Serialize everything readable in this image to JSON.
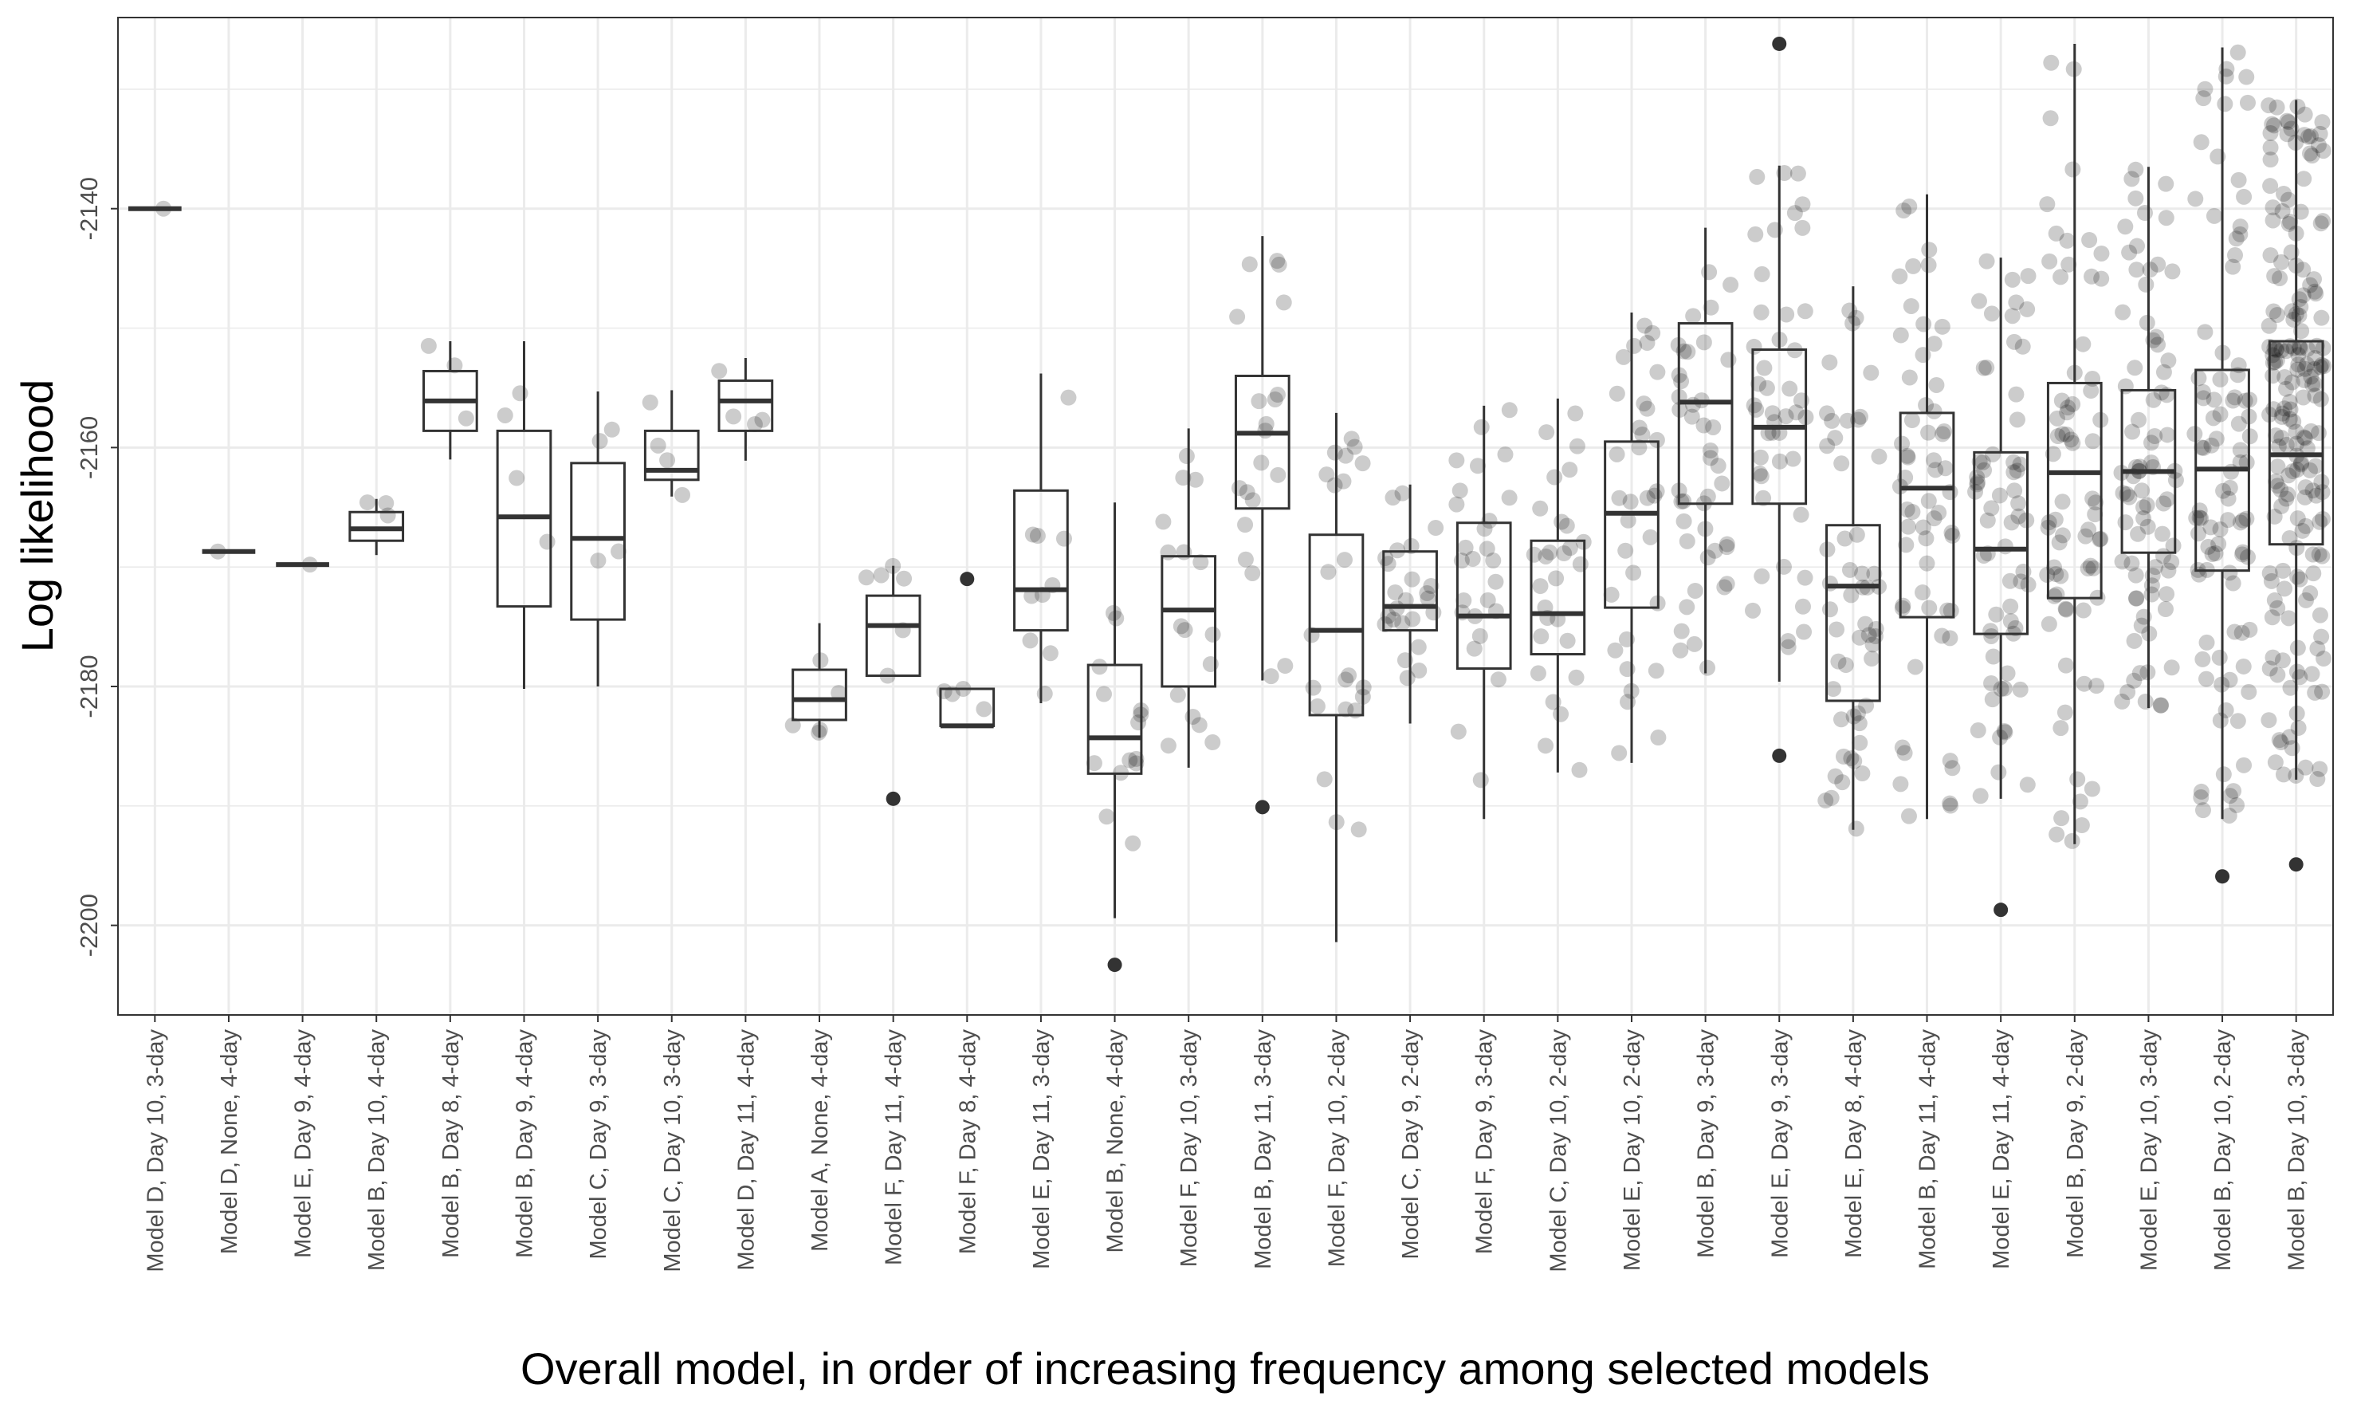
{
  "chart_data": {
    "type": "box",
    "title": "",
    "xlabel": "Overall model, in order of increasing frequency among selected models",
    "ylabel": "Log likelihood",
    "ylim": [
      -2207.5,
      -2124
    ],
    "yticks": [
      -2140,
      -2160,
      -2180,
      -2200
    ],
    "grid": true,
    "point_color": "#000000",
    "point_alpha": 0.2,
    "box_color": "#333333",
    "categories": [
      "Model D, Day 10, 3-day",
      "Model D, None, 4-day",
      "Model E, Day 9, 4-day",
      "Model B, Day 10, 4-day",
      "Model B, Day 8, 4-day",
      "Model B, Day 9, 4-day",
      "Model C, Day 9, 3-day",
      "Model C, Day 10, 3-day",
      "Model D, Day 11, 4-day",
      "Model A, None, 4-day",
      "Model F, Day 11, 4-day",
      "Model F, Day 8, 4-day",
      "Model E, Day 11, 3-day",
      "Model B, None, 4-day",
      "Model F, Day 10, 3-day",
      "Model B, Day 11, 3-day",
      "Model F, Day 10, 2-day",
      "Model C, Day 9, 2-day",
      "Model F, Day 9, 3-day",
      "Model C, Day 10, 2-day",
      "Model E, Day 10, 2-day",
      "Model B, Day 9, 3-day",
      "Model E, Day 9, 3-day",
      "Model E, Day 8, 4-day",
      "Model B, Day 11, 4-day",
      "Model E, Day 11, 4-day",
      "Model B, Day 9, 2-day",
      "Model E, Day 10, 3-day",
      "Model B, Day 10, 2-day",
      "Model B, Day 10, 3-day"
    ],
    "boxes": [
      {
        "q1": -2140,
        "median": -2140,
        "q3": -2140,
        "whisker_low": -2140,
        "whisker_high": -2140,
        "outliers": []
      },
      {
        "q1": -2168.7,
        "median": -2168.7,
        "q3": -2168.7,
        "whisker_low": -2168.7,
        "whisker_high": -2168.7,
        "outliers": []
      },
      {
        "q1": -2169.8,
        "median": -2169.8,
        "q3": -2169.8,
        "whisker_low": -2169.8,
        "whisker_high": -2169.8,
        "outliers": []
      },
      {
        "q1": -2167.8,
        "median": -2166.8,
        "q3": -2165.4,
        "whisker_low": -2169,
        "whisker_high": -2164.3,
        "outliers": []
      },
      {
        "q1": -2158.6,
        "median": -2156.1,
        "q3": -2153.6,
        "whisker_low": -2161,
        "whisker_high": -2151.1,
        "outliers": []
      },
      {
        "q1": -2173.3,
        "median": -2165.8,
        "q3": -2158.6,
        "whisker_low": -2180.2,
        "whisker_high": -2151.1,
        "outliers": []
      },
      {
        "q1": -2174.4,
        "median": -2167.6,
        "q3": -2161.3,
        "whisker_low": -2180,
        "whisker_high": -2155.3,
        "outliers": []
      },
      {
        "q1": -2162.7,
        "median": -2161.9,
        "q3": -2158.6,
        "whisker_low": -2164.1,
        "whisker_high": -2155.2,
        "outliers": []
      },
      {
        "q1": -2158.6,
        "median": -2156.1,
        "q3": -2154.4,
        "whisker_low": -2161.1,
        "whisker_high": -2152.5,
        "outliers": []
      },
      {
        "q1": -2182.8,
        "median": -2181.1,
        "q3": -2178.6,
        "whisker_low": -2184.3,
        "whisker_high": -2174.7,
        "outliers": []
      },
      {
        "q1": -2179.1,
        "median": -2174.9,
        "q3": -2172.4,
        "whisker_low": -2179.1,
        "whisker_high": -2169.9,
        "outliers": [
          -2189.4
        ]
      },
      {
        "q1": -2183.3,
        "median": -2183.3,
        "q3": -2180.2,
        "whisker_low": -2183.3,
        "whisker_high": -2180.2,
        "outliers": [
          -2171
        ]
      },
      {
        "q1": -2175.3,
        "median": -2171.9,
        "q3": -2163.6,
        "whisker_low": -2181.4,
        "whisker_high": -2153.8,
        "outliers": []
      },
      {
        "q1": -2187.3,
        "median": -2184.3,
        "q3": -2178.2,
        "whisker_low": -2199.4,
        "whisker_high": -2164.6,
        "outliers": [
          -2203.3
        ]
      },
      {
        "q1": -2180,
        "median": -2173.6,
        "q3": -2169.1,
        "whisker_low": -2186.8,
        "whisker_high": -2158.4,
        "outliers": []
      },
      {
        "q1": -2165.1,
        "median": -2158.8,
        "q3": -2154,
        "whisker_low": -2179.5,
        "whisker_high": -2142.3,
        "outliers": [
          -2190.1
        ]
      },
      {
        "q1": -2182.4,
        "median": -2175.3,
        "q3": -2167.3,
        "whisker_low": -2201.4,
        "whisker_high": -2157.1,
        "outliers": []
      },
      {
        "q1": -2175.3,
        "median": -2173.3,
        "q3": -2168.7,
        "whisker_low": -2183.1,
        "whisker_high": -2163.1,
        "outliers": []
      },
      {
        "q1": -2178.5,
        "median": -2174.1,
        "q3": -2166.3,
        "whisker_low": -2191.1,
        "whisker_high": -2156.5,
        "outliers": []
      },
      {
        "q1": -2177.3,
        "median": -2173.9,
        "q3": -2167.8,
        "whisker_low": -2187.2,
        "whisker_high": -2155.9,
        "outliers": []
      },
      {
        "q1": -2173.4,
        "median": -2165.5,
        "q3": -2159.5,
        "whisker_low": -2186.4,
        "whisker_high": -2148.7,
        "outliers": []
      },
      {
        "q1": -2164.7,
        "median": -2156.2,
        "q3": -2149.6,
        "whisker_low": -2178.9,
        "whisker_high": -2141.6,
        "outliers": []
      },
      {
        "q1": -2164.7,
        "median": -2158.3,
        "q3": -2151.8,
        "whisker_low": -2179.6,
        "whisker_high": -2136.4,
        "outliers": [
          -2185.8,
          -2126.2
        ]
      },
      {
        "q1": -2181.2,
        "median": -2171.6,
        "q3": -2166.5,
        "whisker_low": -2192,
        "whisker_high": -2146.5,
        "outliers": []
      },
      {
        "q1": -2174.2,
        "median": -2163.4,
        "q3": -2157.1,
        "whisker_low": -2191.1,
        "whisker_high": -2138.8,
        "outliers": []
      },
      {
        "q1": -2175.6,
        "median": -2168.5,
        "q3": -2160.4,
        "whisker_low": -2189.4,
        "whisker_high": -2144.1,
        "outliers": [
          -2198.7
        ]
      },
      {
        "q1": -2172.6,
        "median": -2162.1,
        "q3": -2154.6,
        "whisker_low": -2193.2,
        "whisker_high": -2126.2,
        "outliers": []
      },
      {
        "q1": -2168.8,
        "median": -2162,
        "q3": -2155.2,
        "whisker_low": -2181.8,
        "whisker_high": -2136.5,
        "outliers": []
      },
      {
        "q1": -2170.3,
        "median": -2161.8,
        "q3": -2153.5,
        "whisker_low": -2191.1,
        "whisker_high": -2126.5,
        "outliers": [
          -2195.9
        ]
      },
      {
        "q1": -2168.1,
        "median": -2160.6,
        "q3": -2151.1,
        "whisker_low": -2187.8,
        "whisker_high": -2130.9,
        "outliers": [
          -2194.9
        ]
      }
    ],
    "point_counts": [
      1,
      1,
      1,
      3,
      3,
      4,
      4,
      4,
      4,
      5,
      6,
      4,
      10,
      14,
      16,
      20,
      22,
      24,
      26,
      28,
      33,
      42,
      45,
      52,
      58,
      62,
      70,
      82,
      95,
      190
    ]
  }
}
